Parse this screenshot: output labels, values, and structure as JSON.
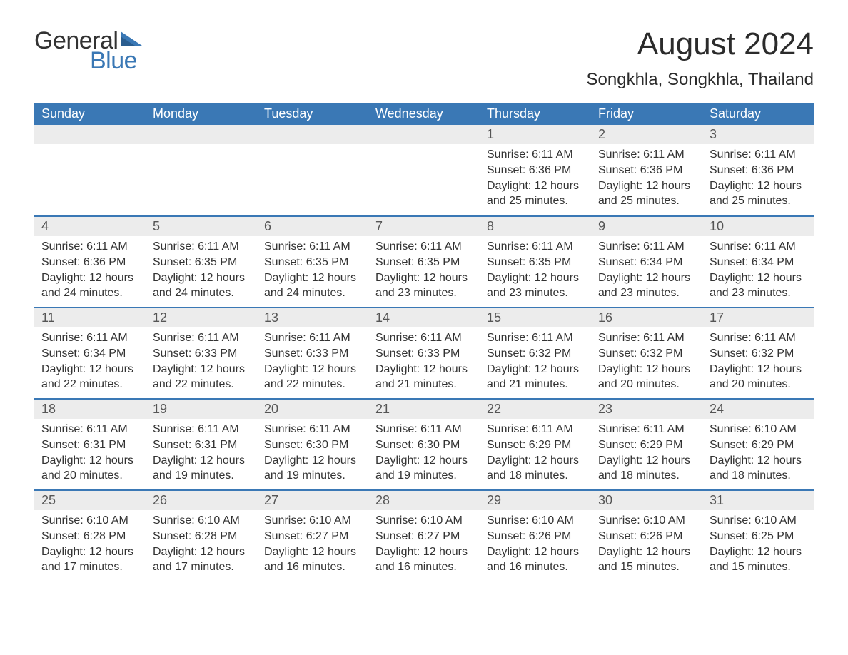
{
  "logo": {
    "word1": "General",
    "word2": "Blue",
    "color_text": "#333333",
    "color_blue": "#3a78b5"
  },
  "title": "August 2024",
  "location": "Songkhla, Songkhla, Thailand",
  "theme": {
    "header_bg": "#3a78b5",
    "header_fg": "#ffffff",
    "daynum_bg": "#ececec",
    "daynum_fg": "#555555",
    "row_border": "#3a78b5",
    "body_bg": "#ffffff",
    "text_color": "#333333",
    "title_fontsize": 44,
    "location_fontsize": 24,
    "header_fontsize": 18,
    "cell_fontsize": 16
  },
  "weekdays": [
    "Sunday",
    "Monday",
    "Tuesday",
    "Wednesday",
    "Thursday",
    "Friday",
    "Saturday"
  ],
  "weeks": [
    [
      null,
      null,
      null,
      null,
      {
        "day": "1",
        "sunrise": "6:11 AM",
        "sunset": "6:36 PM",
        "daylight": "12 hours and 25 minutes."
      },
      {
        "day": "2",
        "sunrise": "6:11 AM",
        "sunset": "6:36 PM",
        "daylight": "12 hours and 25 minutes."
      },
      {
        "day": "3",
        "sunrise": "6:11 AM",
        "sunset": "6:36 PM",
        "daylight": "12 hours and 25 minutes."
      }
    ],
    [
      {
        "day": "4",
        "sunrise": "6:11 AM",
        "sunset": "6:36 PM",
        "daylight": "12 hours and 24 minutes."
      },
      {
        "day": "5",
        "sunrise": "6:11 AM",
        "sunset": "6:35 PM",
        "daylight": "12 hours and 24 minutes."
      },
      {
        "day": "6",
        "sunrise": "6:11 AM",
        "sunset": "6:35 PM",
        "daylight": "12 hours and 24 minutes."
      },
      {
        "day": "7",
        "sunrise": "6:11 AM",
        "sunset": "6:35 PM",
        "daylight": "12 hours and 23 minutes."
      },
      {
        "day": "8",
        "sunrise": "6:11 AM",
        "sunset": "6:35 PM",
        "daylight": "12 hours and 23 minutes."
      },
      {
        "day": "9",
        "sunrise": "6:11 AM",
        "sunset": "6:34 PM",
        "daylight": "12 hours and 23 minutes."
      },
      {
        "day": "10",
        "sunrise": "6:11 AM",
        "sunset": "6:34 PM",
        "daylight": "12 hours and 23 minutes."
      }
    ],
    [
      {
        "day": "11",
        "sunrise": "6:11 AM",
        "sunset": "6:34 PM",
        "daylight": "12 hours and 22 minutes."
      },
      {
        "day": "12",
        "sunrise": "6:11 AM",
        "sunset": "6:33 PM",
        "daylight": "12 hours and 22 minutes."
      },
      {
        "day": "13",
        "sunrise": "6:11 AM",
        "sunset": "6:33 PM",
        "daylight": "12 hours and 22 minutes."
      },
      {
        "day": "14",
        "sunrise": "6:11 AM",
        "sunset": "6:33 PM",
        "daylight": "12 hours and 21 minutes."
      },
      {
        "day": "15",
        "sunrise": "6:11 AM",
        "sunset": "6:32 PM",
        "daylight": "12 hours and 21 minutes."
      },
      {
        "day": "16",
        "sunrise": "6:11 AM",
        "sunset": "6:32 PM",
        "daylight": "12 hours and 20 minutes."
      },
      {
        "day": "17",
        "sunrise": "6:11 AM",
        "sunset": "6:32 PM",
        "daylight": "12 hours and 20 minutes."
      }
    ],
    [
      {
        "day": "18",
        "sunrise": "6:11 AM",
        "sunset": "6:31 PM",
        "daylight": "12 hours and 20 minutes."
      },
      {
        "day": "19",
        "sunrise": "6:11 AM",
        "sunset": "6:31 PM",
        "daylight": "12 hours and 19 minutes."
      },
      {
        "day": "20",
        "sunrise": "6:11 AM",
        "sunset": "6:30 PM",
        "daylight": "12 hours and 19 minutes."
      },
      {
        "day": "21",
        "sunrise": "6:11 AM",
        "sunset": "6:30 PM",
        "daylight": "12 hours and 19 minutes."
      },
      {
        "day": "22",
        "sunrise": "6:11 AM",
        "sunset": "6:29 PM",
        "daylight": "12 hours and 18 minutes."
      },
      {
        "day": "23",
        "sunrise": "6:11 AM",
        "sunset": "6:29 PM",
        "daylight": "12 hours and 18 minutes."
      },
      {
        "day": "24",
        "sunrise": "6:10 AM",
        "sunset": "6:29 PM",
        "daylight": "12 hours and 18 minutes."
      }
    ],
    [
      {
        "day": "25",
        "sunrise": "6:10 AM",
        "sunset": "6:28 PM",
        "daylight": "12 hours and 17 minutes."
      },
      {
        "day": "26",
        "sunrise": "6:10 AM",
        "sunset": "6:28 PM",
        "daylight": "12 hours and 17 minutes."
      },
      {
        "day": "27",
        "sunrise": "6:10 AM",
        "sunset": "6:27 PM",
        "daylight": "12 hours and 16 minutes."
      },
      {
        "day": "28",
        "sunrise": "6:10 AM",
        "sunset": "6:27 PM",
        "daylight": "12 hours and 16 minutes."
      },
      {
        "day": "29",
        "sunrise": "6:10 AM",
        "sunset": "6:26 PM",
        "daylight": "12 hours and 16 minutes."
      },
      {
        "day": "30",
        "sunrise": "6:10 AM",
        "sunset": "6:26 PM",
        "daylight": "12 hours and 15 minutes."
      },
      {
        "day": "31",
        "sunrise": "6:10 AM",
        "sunset": "6:25 PM",
        "daylight": "12 hours and 15 minutes."
      }
    ]
  ],
  "labels": {
    "sunrise": "Sunrise:",
    "sunset": "Sunset:",
    "daylight": "Daylight:"
  }
}
